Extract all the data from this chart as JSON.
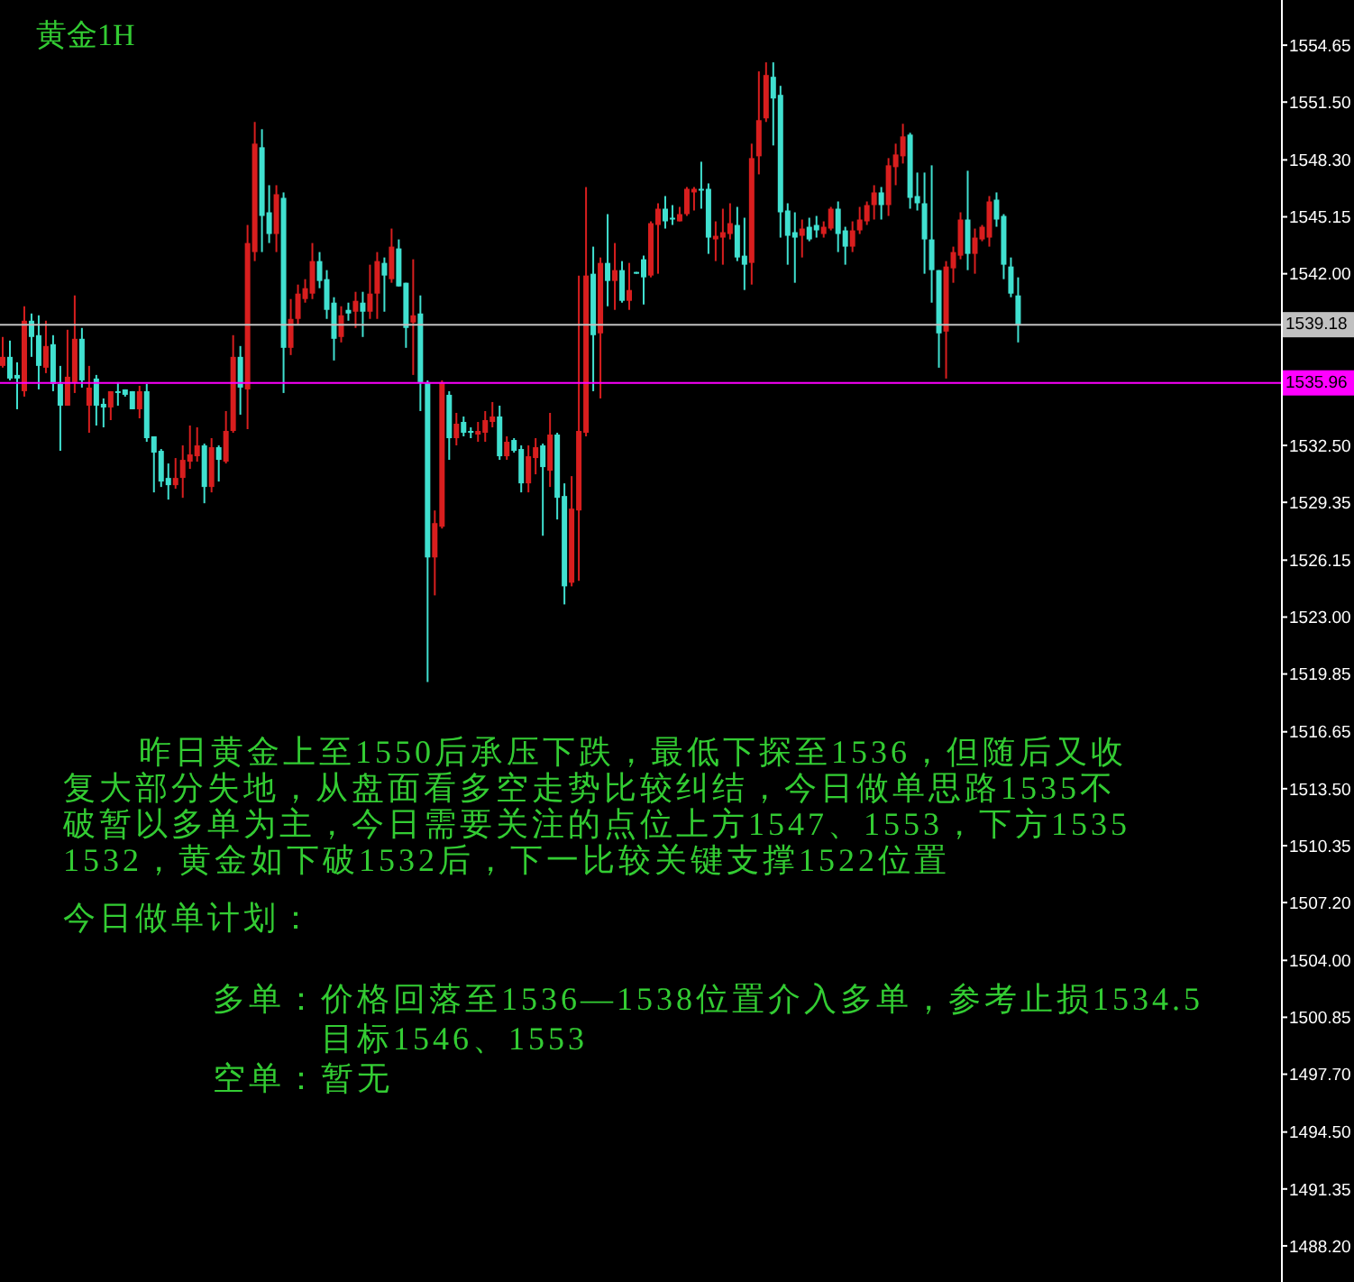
{
  "chart_data": {
    "type": "candlestick",
    "title": "黄金1H",
    "categories": [
      null,
      null,
      null,
      null,
      null,
      null,
      null,
      null,
      null,
      null,
      null,
      null,
      null,
      null,
      null,
      null,
      null,
      null,
      null,
      null,
      null,
      null,
      null,
      null,
      null,
      null,
      null,
      null,
      null,
      null,
      null,
      null,
      null,
      null,
      null,
      null,
      null,
      null,
      null,
      null,
      null,
      null,
      null,
      null,
      null,
      null,
      null,
      null,
      null,
      null,
      null,
      null,
      null,
      null,
      null,
      null,
      null,
      null,
      null,
      null,
      null,
      null,
      null,
      null,
      null,
      null,
      null,
      null,
      null,
      null,
      null,
      null,
      null,
      null,
      null,
      null,
      null,
      null,
      null,
      null,
      null,
      null,
      null,
      null,
      null,
      null,
      null,
      null,
      null,
      null,
      null,
      null,
      null,
      null,
      null,
      null,
      null,
      null,
      null,
      null,
      null,
      null,
      null,
      null,
      null,
      null,
      null,
      null,
      null,
      null,
      null,
      null,
      null,
      null,
      null,
      null,
      null,
      null,
      null,
      null,
      null,
      null,
      null,
      null,
      null,
      null,
      null,
      null,
      null,
      null,
      null,
      null,
      null,
      null,
      null,
      null,
      null,
      null,
      null,
      null,
      null,
      null,
      null,
      null,
      null,
      null,
      null,
      null,
      null,
      null,
      null,
      null,
      null,
      null,
      null,
      null,
      null,
      null,
      null,
      null,
      null,
      null,
      null,
      null,
      null,
      null,
      null,
      null,
      null,
      null,
      null,
      null,
      null,
      null,
      null,
      null,
      null,
      null
    ],
    "ohlc": [
      [
        1536.9,
        1538.5,
        1536.8,
        1537.4
      ],
      [
        1537.4,
        1538.3,
        1536.1,
        1536.2
      ],
      [
        1536.4,
        1537.1,
        1534.5,
        1536.2
      ],
      [
        1535.5,
        1540.2,
        1535.2,
        1539.4
      ],
      [
        1539.4,
        1539.8,
        1537.4,
        1538.5
      ],
      [
        1538.6,
        1539.7,
        1535.6,
        1536.9
      ],
      [
        1536.8,
        1539.4,
        1536.5,
        1538.0
      ],
      [
        1538.1,
        1538.6,
        1535.5,
        1535.9
      ],
      [
        1535.9,
        1536.9,
        1532.2,
        1534.7
      ],
      [
        1534.7,
        1538.9,
        1534.7,
        1536.3
      ],
      [
        1536.0,
        1540.8,
        1535.4,
        1538.4
      ],
      [
        1538.4,
        1539.0,
        1535.7,
        1536.1
      ],
      [
        1534.7,
        1536.9,
        1533.2,
        1535.7
      ],
      [
        1536.2,
        1536.4,
        1533.6,
        1534.7
      ],
      [
        1534.8,
        1535.1,
        1533.5,
        1534.6
      ],
      [
        1534.6,
        1535.5,
        1533.9,
        1535.5
      ],
      [
        1535.5,
        1536.0,
        1534.7,
        1535.4
      ],
      [
        1535.6,
        1535.6,
        1535.2,
        1535.3
      ],
      [
        1535.5,
        1535.5,
        1534.5,
        1534.5
      ],
      [
        1534.5,
        1535.8,
        1534.0,
        1535.5
      ],
      [
        1535.5,
        1535.9,
        1532.7,
        1532.9
      ],
      [
        1533.0,
        1533.0,
        1529.9,
        1532.1
      ],
      [
        1532.2,
        1532.3,
        1530.2,
        1530.5
      ],
      [
        1530.7,
        1531.5,
        1529.5,
        1530.3
      ],
      [
        1530.3,
        1531.8,
        1530.1,
        1530.7
      ],
      [
        1530.7,
        1532.5,
        1529.6,
        1531.7
      ],
      [
        1531.6,
        1533.6,
        1531.2,
        1532.0
      ],
      [
        1531.9,
        1533.5,
        1531.6,
        1532.5
      ],
      [
        1532.5,
        1532.6,
        1529.3,
        1530.2
      ],
      [
        1530.2,
        1532.9,
        1529.9,
        1532.4
      ],
      [
        1532.4,
        1532.5,
        1530.5,
        1531.7
      ],
      [
        1531.6,
        1534.4,
        1531.5,
        1533.3
      ],
      [
        1533.3,
        1538.6,
        1533.2,
        1537.4
      ],
      [
        1537.4,
        1538.0,
        1534.2,
        1535.7
      ],
      [
        1535.6,
        1544.7,
        1533.4,
        1543.7
      ],
      [
        1543.2,
        1550.4,
        1542.7,
        1549.2
      ],
      [
        1549.0,
        1550.0,
        1543.2,
        1545.2
      ],
      [
        1545.4,
        1546.9,
        1543.7,
        1544.2
      ],
      [
        1544.2,
        1546.9,
        1543.2,
        1546.4
      ],
      [
        1546.2,
        1546.5,
        1535.4,
        1537.9
      ],
      [
        1537.9,
        1540.6,
        1537.5,
        1539.5
      ],
      [
        1539.5,
        1541.4,
        1539.2,
        1540.9
      ],
      [
        1540.6,
        1541.7,
        1540.4,
        1541.2
      ],
      [
        1540.9,
        1543.7,
        1540.6,
        1542.7
      ],
      [
        1542.7,
        1543.2,
        1541.2,
        1541.6
      ],
      [
        1541.7,
        1542.2,
        1539.5,
        1540.0
      ],
      [
        1540.4,
        1540.7,
        1537.2,
        1538.4
      ],
      [
        1538.5,
        1540.2,
        1538.2,
        1539.7
      ],
      [
        1540.0,
        1540.4,
        1539.4,
        1539.8
      ],
      [
        1539.9,
        1541.0,
        1539.0,
        1540.5
      ],
      [
        1540.4,
        1541.0,
        1538.5,
        1539.9
      ],
      [
        1539.9,
        1542.5,
        1539.5,
        1540.9
      ],
      [
        1540.9,
        1543.2,
        1539.5,
        1542.7
      ],
      [
        1542.6,
        1542.9,
        1539.9,
        1541.9
      ],
      [
        1541.7,
        1544.5,
        1541.5,
        1543.5
      ],
      [
        1543.4,
        1543.9,
        1541.3,
        1541.3
      ],
      [
        1541.5,
        1541.5,
        1537.9,
        1539.0
      ],
      [
        1539.3,
        1542.8,
        1536.4,
        1539.7
      ],
      [
        1539.8,
        1540.8,
        1534.4,
        1536.0
      ],
      [
        1536.0,
        1536.1,
        1519.4,
        1526.3
      ],
      [
        1526.3,
        1528.9,
        1524.2,
        1528.2
      ],
      [
        1528.0,
        1536.1,
        1527.9,
        1536.0
      ],
      [
        1535.3,
        1535.5,
        1531.7,
        1532.9
      ],
      [
        1532.9,
        1534.3,
        1532.5,
        1533.7
      ],
      [
        1533.8,
        1534.1,
        1533.0,
        1533.2
      ],
      [
        1533.3,
        1533.5,
        1532.9,
        1533.2
      ],
      [
        1533.1,
        1533.8,
        1532.7,
        1533.3
      ],
      [
        1533.2,
        1534.4,
        1532.7,
        1533.9
      ],
      [
        1533.8,
        1534.9,
        1533.5,
        1534.1
      ],
      [
        1534.1,
        1534.7,
        1531.7,
        1531.9
      ],
      [
        1531.9,
        1533.0,
        1531.7,
        1532.7
      ],
      [
        1532.8,
        1532.9,
        1532.1,
        1532.2
      ],
      [
        1532.3,
        1532.5,
        1529.9,
        1530.4
      ],
      [
        1530.4,
        1532.5,
        1529.9,
        1531.9
      ],
      [
        1531.8,
        1532.9,
        1530.9,
        1532.4
      ],
      [
        1532.5,
        1532.6,
        1527.5,
        1531.3
      ],
      [
        1531.1,
        1534.3,
        1530.2,
        1533.1
      ],
      [
        1533.1,
        1533.2,
        1528.4,
        1529.6
      ],
      [
        1529.7,
        1530.4,
        1523.7,
        1524.7
      ],
      [
        1524.9,
        1530.8,
        1524.7,
        1529.0
      ],
      [
        1528.9,
        1541.9,
        1525.0,
        1533.3
      ],
      [
        1533.2,
        1546.8,
        1533.0,
        1541.9
      ],
      [
        1542.0,
        1543.5,
        1535.5,
        1538.6
      ],
      [
        1538.7,
        1542.9,
        1535.1,
        1542.6
      ],
      [
        1542.6,
        1545.3,
        1540.2,
        1541.6
      ],
      [
        1541.6,
        1543.7,
        1540.0,
        1542.2
      ],
      [
        1542.2,
        1542.7,
        1540.4,
        1540.5
      ],
      [
        1540.5,
        1542.6,
        1540.0,
        1541.1
      ],
      [
        1542.1,
        1542.1,
        1542.0,
        1542.0
      ],
      [
        1542.8,
        1543.0,
        1540.3,
        1541.8
      ],
      [
        1541.9,
        1544.9,
        1541.8,
        1544.8
      ],
      [
        1544.7,
        1545.9,
        1542.0,
        1545.6
      ],
      [
        1545.6,
        1546.3,
        1544.5,
        1544.9
      ],
      [
        1545.1,
        1545.8,
        1544.7,
        1545.0
      ],
      [
        1544.9,
        1545.7,
        1544.9,
        1545.3
      ],
      [
        1545.3,
        1546.8,
        1545.2,
        1546.7
      ],
      [
        1546.5,
        1546.8,
        1545.5,
        1546.7
      ],
      [
        1546.7,
        1548.2,
        1545.6,
        1546.6
      ],
      [
        1546.7,
        1547.0,
        1543.1,
        1544.0
      ],
      [
        1543.9,
        1544.9,
        1542.7,
        1544.1
      ],
      [
        1544.0,
        1545.6,
        1542.5,
        1544.3
      ],
      [
        1544.2,
        1545.9,
        1543.9,
        1544.8
      ],
      [
        1544.7,
        1545.7,
        1542.7,
        1542.9
      ],
      [
        1543.0,
        1545.1,
        1541.1,
        1542.5
      ],
      [
        1542.6,
        1549.2,
        1541.4,
        1548.4
      ],
      [
        1548.5,
        1553.2,
        1547.5,
        1550.5
      ],
      [
        1550.6,
        1553.7,
        1550.4,
        1553.0
      ],
      [
        1552.9,
        1553.7,
        1549.1,
        1551.7
      ],
      [
        1551.9,
        1552.4,
        1544.0,
        1545.4
      ],
      [
        1545.5,
        1545.9,
        1542.5,
        1544.1
      ],
      [
        1544.3,
        1545.4,
        1541.5,
        1544.0
      ],
      [
        1544.1,
        1545.0,
        1542.9,
        1544.5
      ],
      [
        1544.6,
        1545.1,
        1543.8,
        1543.9
      ],
      [
        1544.7,
        1545.2,
        1544.0,
        1544.4
      ],
      [
        1544.2,
        1544.9,
        1544.0,
        1544.6
      ],
      [
        1544.5,
        1545.7,
        1544.4,
        1545.6
      ],
      [
        1545.6,
        1546.0,
        1543.2,
        1544.2
      ],
      [
        1544.4,
        1544.6,
        1542.5,
        1543.5
      ],
      [
        1543.5,
        1544.9,
        1543.2,
        1544.4
      ],
      [
        1544.4,
        1545.7,
        1544.2,
        1545.0
      ],
      [
        1544.9,
        1546.0,
        1544.7,
        1545.8
      ],
      [
        1545.8,
        1546.9,
        1545.0,
        1546.5
      ],
      [
        1546.5,
        1546.8,
        1545.0,
        1545.8
      ],
      [
        1545.8,
        1548.4,
        1545.2,
        1548.0
      ],
      [
        1547.9,
        1549.2,
        1546.9,
        1548.6
      ],
      [
        1548.5,
        1550.3,
        1548.1,
        1549.6
      ],
      [
        1549.7,
        1549.8,
        1545.6,
        1546.2
      ],
      [
        1546.3,
        1547.6,
        1545.5,
        1545.9
      ],
      [
        1545.9,
        1547.6,
        1542.0,
        1543.9
      ],
      [
        1543.9,
        1548.0,
        1540.4,
        1542.2
      ],
      [
        1542.2,
        1542.2,
        1536.8,
        1538.7
      ],
      [
        1538.8,
        1542.7,
        1536.2,
        1542.4
      ],
      [
        1542.3,
        1543.5,
        1541.5,
        1543.2
      ],
      [
        1543.0,
        1545.4,
        1542.8,
        1545.0
      ],
      [
        1545.0,
        1547.7,
        1542.2,
        1543.1
      ],
      [
        1543.1,
        1544.5,
        1542.0,
        1544.0
      ],
      [
        1543.9,
        1544.7,
        1543.8,
        1544.6
      ],
      [
        1544.0,
        1546.3,
        1543.5,
        1546.0
      ],
      [
        1546.1,
        1546.5,
        1544.6,
        1545.0
      ],
      [
        1545.2,
        1545.3,
        1541.7,
        1542.5
      ],
      [
        1542.4,
        1542.9,
        1540.7,
        1540.9
      ],
      [
        1540.8,
        1541.8,
        1538.2,
        1539.2
      ],
      null,
      null,
      null,
      null,
      null,
      null,
      null,
      null,
      null,
      null,
      null,
      null,
      null,
      null,
      null,
      null,
      null,
      null,
      null,
      null,
      null,
      null,
      null,
      null,
      null,
      null,
      null,
      null,
      null,
      null,
      null,
      null,
      null,
      null,
      null,
      null
    ],
    "colors": [
      "#d81e1e",
      "#40e0d0",
      "#40e0d0",
      "#d81e1e",
      "#40e0d0",
      "#40e0d0",
      "#d81e1e",
      "#40e0d0",
      "#40e0d0",
      "#d81e1e",
      "#d81e1e",
      "#40e0d0",
      "#d81e1e",
      "#40e0d0",
      "#40e0d0",
      "#d81e1e",
      "#40e0d0",
      "#40e0d0",
      "#40e0d0",
      "#d81e1e",
      "#40e0d0",
      "#40e0d0",
      "#40e0d0",
      "#40e0d0",
      "#d81e1e",
      "#d81e1e",
      "#d81e1e",
      "#d81e1e",
      "#40e0d0",
      "#d81e1e",
      "#40e0d0",
      "#d81e1e",
      "#d81e1e",
      "#40e0d0",
      "#d81e1e",
      "#d81e1e",
      "#40e0d0",
      "#40e0d0",
      "#d81e1e",
      "#40e0d0",
      "#d81e1e",
      "#d81e1e",
      "#d81e1e",
      "#d81e1e",
      "#40e0d0",
      "#40e0d0",
      "#40e0d0",
      "#d81e1e",
      "#40e0d0",
      "#d81e1e",
      "#40e0d0",
      "#d81e1e",
      "#d81e1e",
      "#40e0d0",
      "#d81e1e",
      "#40e0d0",
      "#40e0d0",
      "#d81e1e",
      "#40e0d0",
      "#40e0d0",
      "#d81e1e",
      "#d81e1e",
      "#40e0d0",
      "#d81e1e",
      "#40e0d0",
      "#40e0d0",
      "#d81e1e",
      "#d81e1e",
      "#d81e1e",
      "#40e0d0",
      "#d81e1e",
      "#40e0d0",
      "#40e0d0",
      "#d81e1e",
      "#d81e1e",
      "#40e0d0",
      "#d81e1e",
      "#40e0d0",
      "#40e0d0",
      "#d81e1e",
      "#d81e1e",
      "#d81e1e",
      "#40e0d0",
      "#d81e1e",
      "#40e0d0",
      "#d81e1e",
      "#40e0d0",
      "#d81e1e",
      "#40e0d0",
      "#40e0d0",
      "#d81e1e",
      "#d81e1e",
      "#40e0d0",
      "#40e0d0",
      "#d81e1e",
      "#d81e1e",
      "#d81e1e",
      "#40e0d0",
      "#40e0d0",
      "#d81e1e",
      "#d81e1e",
      "#d81e1e",
      "#40e0d0",
      "#40e0d0",
      "#d81e1e",
      "#d81e1e",
      "#d81e1e",
      "#40e0d0",
      "#40e0d0",
      "#40e0d0",
      "#40e0d0",
      "#d81e1e",
      "#40e0d0",
      "#40e0d0",
      "#d81e1e",
      "#d81e1e",
      "#40e0d0",
      "#40e0d0",
      "#d81e1e",
      "#d81e1e",
      "#d81e1e",
      "#d81e1e",
      "#40e0d0",
      "#d81e1e",
      "#d81e1e",
      "#d81e1e",
      "#40e0d0",
      "#40e0d0",
      "#40e0d0",
      "#40e0d0",
      "#40e0d0",
      "#d81e1e",
      "#d81e1e",
      "#d81e1e",
      "#40e0d0",
      "#d81e1e",
      "#d81e1e",
      "#d81e1e",
      "#40e0d0",
      "#40e0d0",
      "#40e0d0",
      "#40e0d0",
      null,
      null,
      null,
      null,
      null,
      null,
      null,
      null,
      null,
      null,
      null,
      null,
      null,
      null,
      null,
      null,
      null,
      null,
      null,
      null,
      null,
      null,
      null,
      null,
      null,
      null,
      null,
      null,
      null,
      null,
      null,
      null,
      null,
      null,
      null,
      null
    ],
    "ylim": [
      1486.2,
      1557.15
    ],
    "yticks": [
      {
        "value": 1488.2,
        "label": "1488.20"
      },
      1491.35,
      {
        "value": 1494.5,
        "label": "1494.50"
      },
      {
        "value": 1497.7,
        "label": "1497.70"
      },
      1500.85,
      {
        "value": 1504,
        "label": "1504.00"
      },
      {
        "value": 1507.2,
        "label": "1507.20"
      },
      1510.35,
      {
        "value": 1513.5,
        "label": "1513.50"
      },
      1516.65,
      1519.85,
      {
        "value": 1523,
        "label": "1523.00"
      },
      1526.15,
      1529.35,
      {
        "value": 1532.5,
        "label": "1532.50"
      },
      {
        "value": 1542,
        "label": "1542.00"
      },
      1545.15,
      {
        "value": 1548.3,
        "label": "1548.30"
      },
      {
        "value": 1551.5,
        "label": "1551.50"
      },
      1554.65
    ],
    "tick_labels": "y",
    "ref_lines": [
      {
        "axis": "y",
        "value": 1539.18,
        "label": "1539.18",
        "color": "#c0c0c0"
      },
      {
        "axis": "y",
        "value": 1535.96,
        "label": "1535.96",
        "color": "#ff00ff"
      }
    ],
    "annotations": [
      "昨日黄金上至1550后承压下跌，最低下探至1536，但随后又收复大部分失地，从盘面看多空走势比较纠结，今日做单思路1535不破暂以多单为主，今日需要关注的点位上方1547、1553，下方1535 1532，黄金如下破1532后，下一比较关键支撑1522位置",
      "今日做单计划：",
      "多单：价格回落至1536—1538位置介入多单，参考止损1534.5",
      "目标1546、1553",
      "空单：暂无"
    ]
  }
}
